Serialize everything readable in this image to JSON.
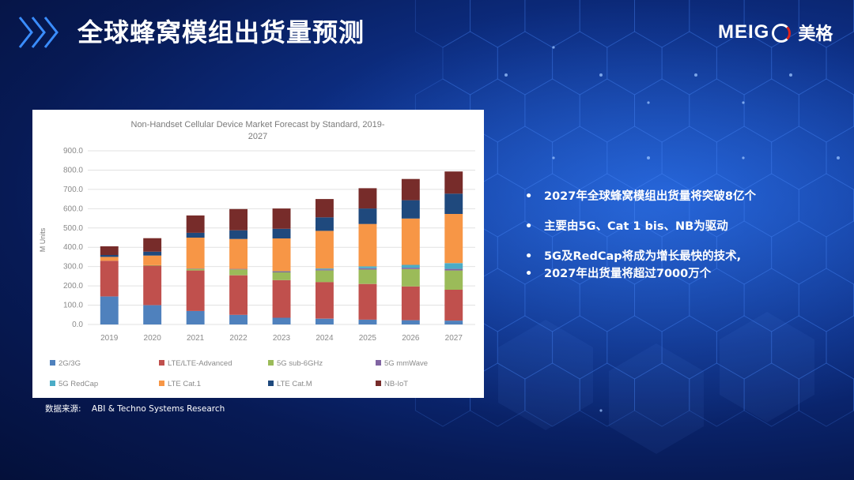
{
  "header": {
    "title": "全球蜂窝模组出货量预测",
    "logo_text_en": "MEIG",
    "logo_text_cn": "美格"
  },
  "chart_data": {
    "type": "bar",
    "stacked": true,
    "title": "Non-Handset Cellular Device Market Forecast by Standard, 2019-2027",
    "title_lines": [
      "Non-Handset Cellular Device Market Forecast by Standard, 2019-",
      "2027"
    ],
    "xlabel": "",
    "ylabel": "M Units",
    "ylim": [
      0,
      900
    ],
    "yticks": [
      "900.0",
      "800.0",
      "700.0",
      "600.0",
      "500.0",
      "400.0",
      "300.0",
      "200.0",
      "100.0",
      "0.0"
    ],
    "categories": [
      "2019",
      "2020",
      "2021",
      "2022",
      "2023",
      "2024",
      "2025",
      "2026",
      "2027"
    ],
    "series": [
      {
        "name": "2G/3G",
        "color": "#4f81bd",
        "values": [
          145,
          100,
          70,
          50,
          35,
          30,
          25,
          22,
          20
        ]
      },
      {
        "name": "LTE/LTE-Advanced",
        "color": "#c0504d",
        "values": [
          185,
          205,
          210,
          205,
          195,
          190,
          185,
          175,
          160
        ]
      },
      {
        "name": "5G sub-6GHz",
        "color": "#9bbb59",
        "values": [
          0,
          2,
          8,
          30,
          40,
          60,
          75,
          90,
          100
        ]
      },
      {
        "name": "5G mmWave",
        "color": "#8064a2",
        "values": [
          0,
          0,
          2,
          3,
          4,
          5,
          6,
          7,
          8
        ]
      },
      {
        "name": "5G RedCap",
        "color": "#4bacc6",
        "values": [
          0,
          0,
          0,
          0,
          2,
          5,
          10,
          15,
          30
        ]
      },
      {
        "name": "LTE Cat.1",
        "color": "#f79646",
        "values": [
          20,
          50,
          160,
          155,
          170,
          195,
          220,
          240,
          255
        ]
      },
      {
        "name": "LTE Cat.M",
        "color": "#1f497d",
        "values": [
          10,
          20,
          25,
          45,
          50,
          70,
          80,
          95,
          105
        ]
      },
      {
        "name": "NB-IoT",
        "color": "#772c2a",
        "values": [
          45,
          70,
          90,
          110,
          105,
          95,
          105,
          110,
          115
        ]
      }
    ],
    "legend_position": "bottom"
  },
  "source": {
    "label": "数据来源:",
    "text": "ABI & Techno Systems Research"
  },
  "bullets": [
    {
      "text": "2027年全球蜂窝模组出货量将突破8亿个"
    },
    {
      "text": "主要由5G、Cat 1 bis、NB为驱动"
    },
    {
      "text": "5G及RedCap将成为增长最快的技术,"
    },
    {
      "text": "2027年出货量将超过7000万个"
    }
  ],
  "colors": {
    "background": "#0a2466",
    "accent": "#3a8dff",
    "logo_red": "#e2231a",
    "text": "#ffffff"
  }
}
